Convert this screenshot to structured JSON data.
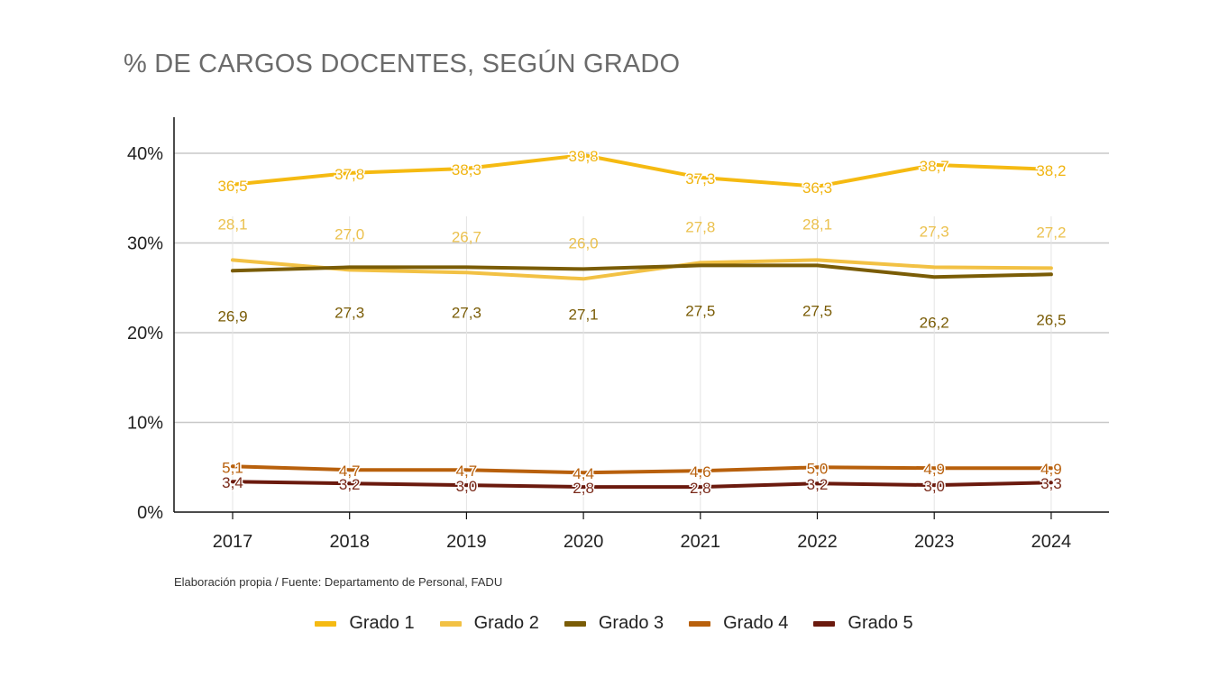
{
  "chart_data": {
    "type": "line",
    "title": "% DE CARGOS DOCENTES, SEGÚN GRADO",
    "x": [
      "2017",
      "2018",
      "2019",
      "2020",
      "2021",
      "2022",
      "2023",
      "2024"
    ],
    "y_ticks": [
      "0%",
      "10%",
      "20%",
      "30%",
      "40%"
    ],
    "ylim": [
      0,
      44
    ],
    "grid": true,
    "legend_position": "bottom",
    "series": [
      {
        "name": "Grado 1",
        "color": "#F5BA12",
        "label_color": "#F0B411",
        "label_pos": "on",
        "values": [
          36.5,
          37.8,
          38.3,
          39.8,
          37.3,
          36.3,
          38.7,
          38.2
        ],
        "labels": [
          "36,5",
          "37,8",
          "38,3",
          "39,8",
          "37,3",
          "36,3",
          "38,7",
          "38,2"
        ]
      },
      {
        "name": "Grado 2",
        "color": "#F2C144",
        "label_color": "#EBC14E",
        "label_pos": "above",
        "values": [
          28.1,
          27.0,
          26.7,
          26.0,
          27.8,
          28.1,
          27.3,
          27.2
        ],
        "labels": [
          "28,1",
          "27,0",
          "26,7",
          "26,0",
          "27,8",
          "28,1",
          "27,3",
          "27,2"
        ]
      },
      {
        "name": "Grado 3",
        "color": "#7A5C06",
        "label_color": "#7A5C06",
        "label_pos": "below",
        "values": [
          26.9,
          27.3,
          27.3,
          27.1,
          27.5,
          27.5,
          26.2,
          26.5
        ],
        "labels": [
          "26,9",
          "27,3",
          "27,3",
          "27,1",
          "27,5",
          "27,5",
          "26,2",
          "26,5"
        ]
      },
      {
        "name": "Grado 4",
        "color": "#B8600C",
        "label_color": "#B8600C",
        "label_pos": "on",
        "values": [
          5.1,
          4.7,
          4.7,
          4.4,
          4.6,
          5.0,
          4.9,
          4.9
        ],
        "labels": [
          "5,1",
          "4,7",
          "4,7",
          "4,4",
          "4,6",
          "5,0",
          "4,9",
          "4,9"
        ]
      },
      {
        "name": "Grado 5",
        "color": "#6B1A0E",
        "label_color": "#7A2A1A",
        "label_pos": "on",
        "values": [
          3.4,
          3.2,
          3.0,
          2.8,
          2.8,
          3.2,
          3.0,
          3.3
        ],
        "labels": [
          "3,4",
          "3,2",
          "3,0",
          "2,8",
          "2,8",
          "3,2",
          "3,0",
          "3,3"
        ]
      }
    ]
  },
  "source_note": "Elaboración propia / Fuente: Departamento de Personal, FADU"
}
